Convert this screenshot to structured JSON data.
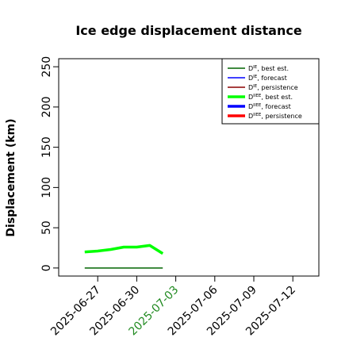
{
  "chart_data": {
    "type": "line",
    "title": "Ice edge displacement distance",
    "xlabel": "",
    "ylabel": "Displacement (km)",
    "ylim": [
      -10,
      260
    ],
    "xlim": [
      "2025-06-24",
      "2025-07-14"
    ],
    "y_ticks": [
      0,
      50,
      100,
      150,
      200,
      250
    ],
    "x_ticks": [
      {
        "label": "2025-06-27",
        "color": "#000000"
      },
      {
        "label": "2025-06-30",
        "color": "#000000"
      },
      {
        "label": "2025-07-03",
        "color": "#228B22"
      },
      {
        "label": "2025-07-06",
        "color": "#000000"
      },
      {
        "label": "2025-07-09",
        "color": "#000000"
      },
      {
        "label": "2025-07-12",
        "color": "#000000"
      }
    ],
    "grid": false,
    "legend_position": "top-right",
    "legend": [
      {
        "label_main": "D",
        "label_sup": "IE",
        "label_rest": ", best est.",
        "color": "#006400",
        "style": "thin"
      },
      {
        "label_main": "D",
        "label_sup": "IE",
        "label_rest": ", forecast",
        "color": "#0000ff",
        "style": "thin"
      },
      {
        "label_main": "D",
        "label_sup": "IE",
        "label_rest": ", persistence",
        "color": "#8b0000",
        "style": "thin"
      },
      {
        "label_main": "D",
        "label_sup": "IIEE",
        "label_rest": ", best est.",
        "color": "#00ff00",
        "style": "thick"
      },
      {
        "label_main": "D",
        "label_sup": "IIEE",
        "label_rest": ", forecast",
        "color": "#0000ff",
        "style": "thick"
      },
      {
        "label_main": "D",
        "label_sup": "IIEE",
        "label_rest": ", persistence",
        "color": "#ff0000",
        "style": "thick"
      }
    ],
    "series": [
      {
        "name": "DIE, best est.",
        "color": "#006400",
        "style": "thin",
        "x": [
          "2025-06-26",
          "2025-06-27",
          "2025-06-28",
          "2025-06-29",
          "2025-06-30",
          "2025-07-01",
          "2025-07-02"
        ],
        "values": [
          0,
          0,
          0,
          0,
          0,
          0,
          0
        ]
      },
      {
        "name": "DIIEE, best est.",
        "color": "#00ff00",
        "style": "thick",
        "x": [
          "2025-06-26",
          "2025-06-27",
          "2025-06-28",
          "2025-06-29",
          "2025-06-30",
          "2025-07-01",
          "2025-07-02"
        ],
        "values": [
          20,
          21,
          23,
          26,
          26,
          28,
          18
        ]
      }
    ]
  }
}
